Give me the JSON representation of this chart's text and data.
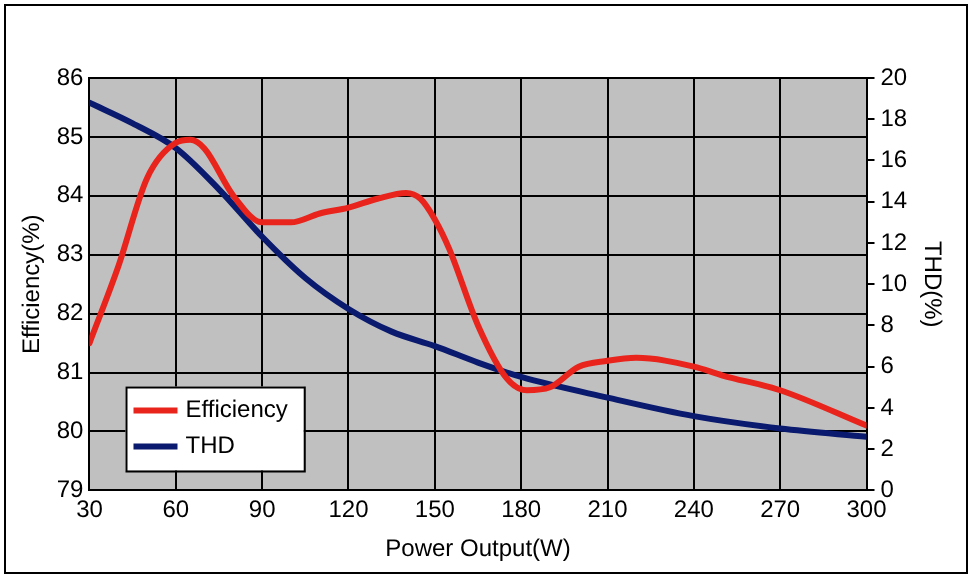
{
  "chart_data": {
    "type": "line",
    "xlabel": "Power Output(W)",
    "ylabel": "Efficiency(%)",
    "y2label": "THD(%)",
    "xlim": [
      30,
      300
    ],
    "xticks": [
      30,
      60,
      90,
      120,
      150,
      180,
      210,
      240,
      270,
      300
    ],
    "ylim": [
      79,
      86
    ],
    "yticks": [
      79,
      80,
      81,
      82,
      83,
      84,
      85,
      86
    ],
    "y2lim": [
      0,
      20
    ],
    "y2ticks": [
      0,
      2,
      4,
      6,
      8,
      10,
      12,
      14,
      16,
      18,
      20
    ],
    "grid": true,
    "legend": "bottom left",
    "marker": "none",
    "line_style": "solid",
    "series": [
      {
        "name": "Efficiency",
        "color": "#e8241c",
        "x": [
          30,
          40,
          50,
          60,
          65,
          70,
          80,
          90,
          100,
          110,
          120,
          130,
          140,
          145,
          150,
          155,
          165,
          175,
          182,
          190,
          200,
          210,
          220,
          240,
          250,
          270,
          300
        ],
        "values": [
          81.5,
          82.8,
          84.3,
          84.9,
          84.95,
          84.8,
          84.0,
          83.55,
          83.55,
          83.7,
          83.8,
          83.95,
          84.05,
          83.95,
          83.6,
          83.1,
          81.8,
          80.9,
          80.7,
          80.75,
          81.1,
          81.2,
          81.25,
          81.1,
          80.95,
          80.7,
          80.1
        ]
      },
      {
        "name": "THD",
        "color": "#0a1a6e",
        "axis": "y2",
        "x": [
          30,
          45,
          60,
          75,
          90,
          105,
          120,
          135,
          150,
          165,
          180,
          210,
          240,
          270,
          300
        ],
        "values": [
          18.8,
          17.8,
          16.6,
          14.6,
          12.3,
          10.3,
          8.8,
          7.7,
          7.0,
          6.2,
          5.5,
          4.5,
          3.6,
          3.0,
          2.6
        ]
      }
    ]
  }
}
